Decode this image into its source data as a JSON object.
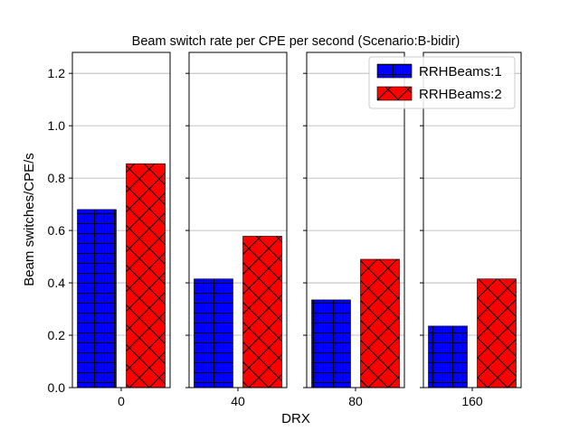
{
  "chart_data": {
    "type": "bar",
    "title": "Beam switch rate per CPE per second (Scenario:B-bidir)",
    "xlabel": "DRX",
    "ylabel": "Beam switches/CPE/s",
    "ylim": [
      0,
      1.28
    ],
    "yticks": [
      "0.0",
      "0.2",
      "0.4",
      "0.6",
      "0.8",
      "1.0",
      "1.2"
    ],
    "grid": true,
    "legend_position": "top-right",
    "categories": [
      "0",
      "40",
      "80",
      "160"
    ],
    "series": [
      {
        "name": "RRHBeams:1",
        "color": "#0000ff",
        "hatch": "grid",
        "values": [
          0.68,
          0.415,
          0.335,
          0.235
        ]
      },
      {
        "name": "RRHBeams:2",
        "color": "#ff0000",
        "hatch": "cross-diagonal",
        "values": [
          0.855,
          0.578,
          0.49,
          0.415
        ]
      }
    ]
  }
}
